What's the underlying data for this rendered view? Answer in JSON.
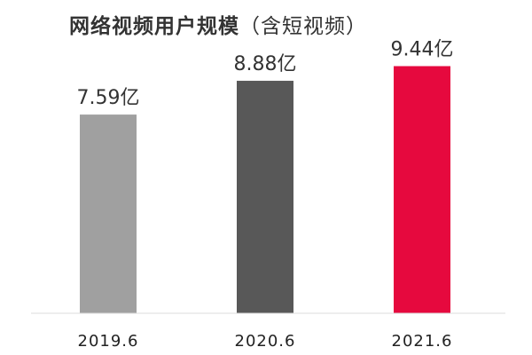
{
  "chart_data": {
    "type": "bar",
    "title": "网络视频用户规模",
    "subtitle": "（含短视频）",
    "categories": [
      "2019.6",
      "2020.6",
      "2021.6"
    ],
    "values": [
      7.59,
      8.88,
      9.44
    ],
    "data_labels": [
      "7.59亿",
      "8.88亿",
      "9.44亿"
    ],
    "unit": "亿",
    "bar_colors": [
      "#a0a0a0",
      "#585858",
      "#e6093e"
    ],
    "baseline_color": "#dcdcdc",
    "ylim": [
      0,
      10
    ],
    "grid": false,
    "legend": "none"
  }
}
